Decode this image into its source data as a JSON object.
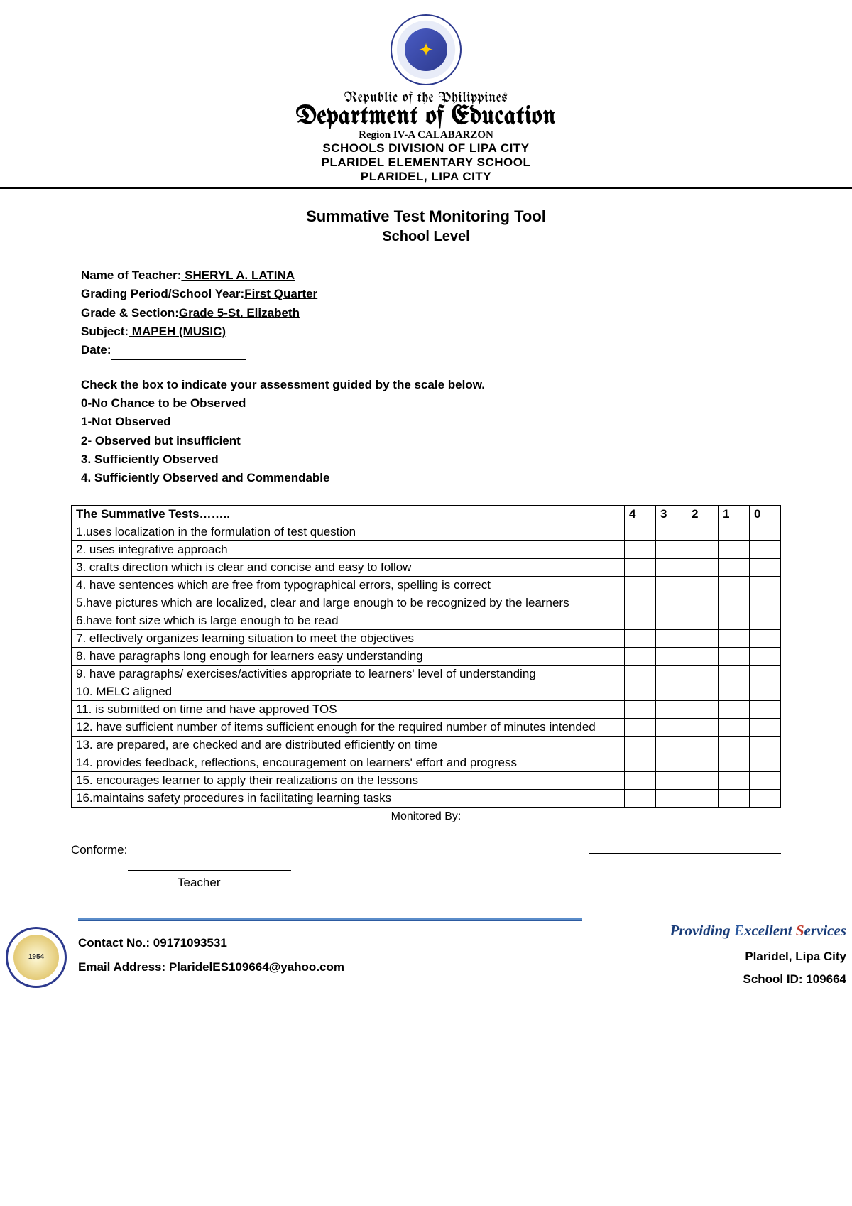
{
  "header": {
    "republic": "Republic of the Philippines",
    "department": "Department of Education",
    "region": "Region IV-A CALABARZON",
    "division": "SCHOOLS DIVISION OF LIPA CITY",
    "school": "PLARIDEL ELEMENTARY SCHOOL",
    "city": "PLARIDEL, LIPA CITY"
  },
  "title": "Summative Test Monitoring Tool",
  "subtitle": "School Level",
  "info": {
    "teacher_label": "Name of Teacher:",
    "teacher_value": "   SHERYL A. LATINA   ",
    "grading_label": "Grading Period/School Year:",
    "grading_value": "First Quarter",
    "grade_label": "Grade & Section:",
    "grade_value": "Grade 5-St. Elizabeth",
    "subject_label": "Subject:",
    "subject_value": "   MAPEH (MUSIC)",
    "date_label": "Date:"
  },
  "scale": {
    "intro": "Check the box to indicate your assessment guided by the scale below.",
    "s0": "0-No Chance to be Observed",
    "s1": "1-Not Observed",
    "s2": "2- Observed but insufficient",
    "s3": "3. Sufficiently Observed",
    "s4": "4. Sufficiently Observed and Commendable"
  },
  "table": {
    "header": "The Summative Tests……..",
    "cols": [
      "4",
      "3",
      "2",
      "1",
      "0"
    ],
    "rows": [
      "1.uses localization in the formulation of test question",
      "2. uses integrative approach",
      "3. crafts direction which is clear and concise and easy to follow",
      "4. have sentences which are free from typographical errors, spelling is correct",
      "5.have pictures which are localized, clear and large enough to be recognized by the learners",
      "6.have font size which is large enough to be read",
      "7. effectively organizes learning situation to meet the objectives",
      "8. have paragraphs long enough for learners easy understanding",
      "9. have paragraphs/ exercises/activities appropriate to learners' level of understanding",
      "10. MELC aligned",
      "11. is submitted on time and have approved TOS",
      "12. have sufficient number of items sufficient enough for the required number of minutes intended",
      "13. are prepared, are checked and are distributed efficiently on time",
      "14. provides feedback, reflections, encouragement on learners' effort and progress",
      "15. encourages learner to apply their realizations on the lessons",
      "16.maintains safety procedures in facilitating learning tasks"
    ]
  },
  "monitored_by": "Monitored By:",
  "conforme": "Conforme:",
  "teacher_role": "Teacher",
  "footer": {
    "contact_label": "Contact No.: ",
    "contact_value": "09171093531",
    "email_label": "Email Address: ",
    "email_value": "PlaridelES109664@yahoo.com",
    "motto_p": "P",
    "motto_providing": "roviding ",
    "motto_e": "E",
    "motto_excellent": "xcellent ",
    "motto_s": "S",
    "motto_services": "ervices",
    "location": "Plaridel, Lipa City",
    "schoolid": "School ID: 109664"
  }
}
